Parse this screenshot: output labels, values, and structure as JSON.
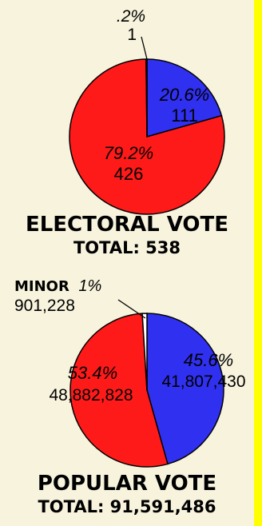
{
  "chart_data": [
    {
      "type": "pie",
      "title": "ELECTORAL VOTE",
      "subtitle": "TOTAL: 538",
      "slices": [
        {
          "label": "",
          "percent": "20.6%",
          "value": 111,
          "value_label": "111",
          "color": "#3030f0"
        },
        {
          "label": "",
          "percent": "79.2%",
          "value": 426,
          "value_label": "426",
          "color": "#ff1a1a"
        },
        {
          "label": "",
          "percent": ".2%",
          "value": 1,
          "value_label": "1",
          "color": "#ffffff"
        }
      ]
    },
    {
      "type": "pie",
      "title": "POPULAR VOTE",
      "subtitle": "TOTAL: 91,591,486",
      "slices": [
        {
          "label": "",
          "percent": "45.6%",
          "value": 41807430,
          "value_label": "41,807,430",
          "color": "#3030f0"
        },
        {
          "label": "",
          "percent": "53.4%",
          "value": 48882828,
          "value_label": "48,882,828",
          "color": "#ff1a1a"
        },
        {
          "label": "MINOR",
          "percent": "1%",
          "value": 901228,
          "value_label": "901,228",
          "color": "#ffffff"
        }
      ]
    }
  ]
}
